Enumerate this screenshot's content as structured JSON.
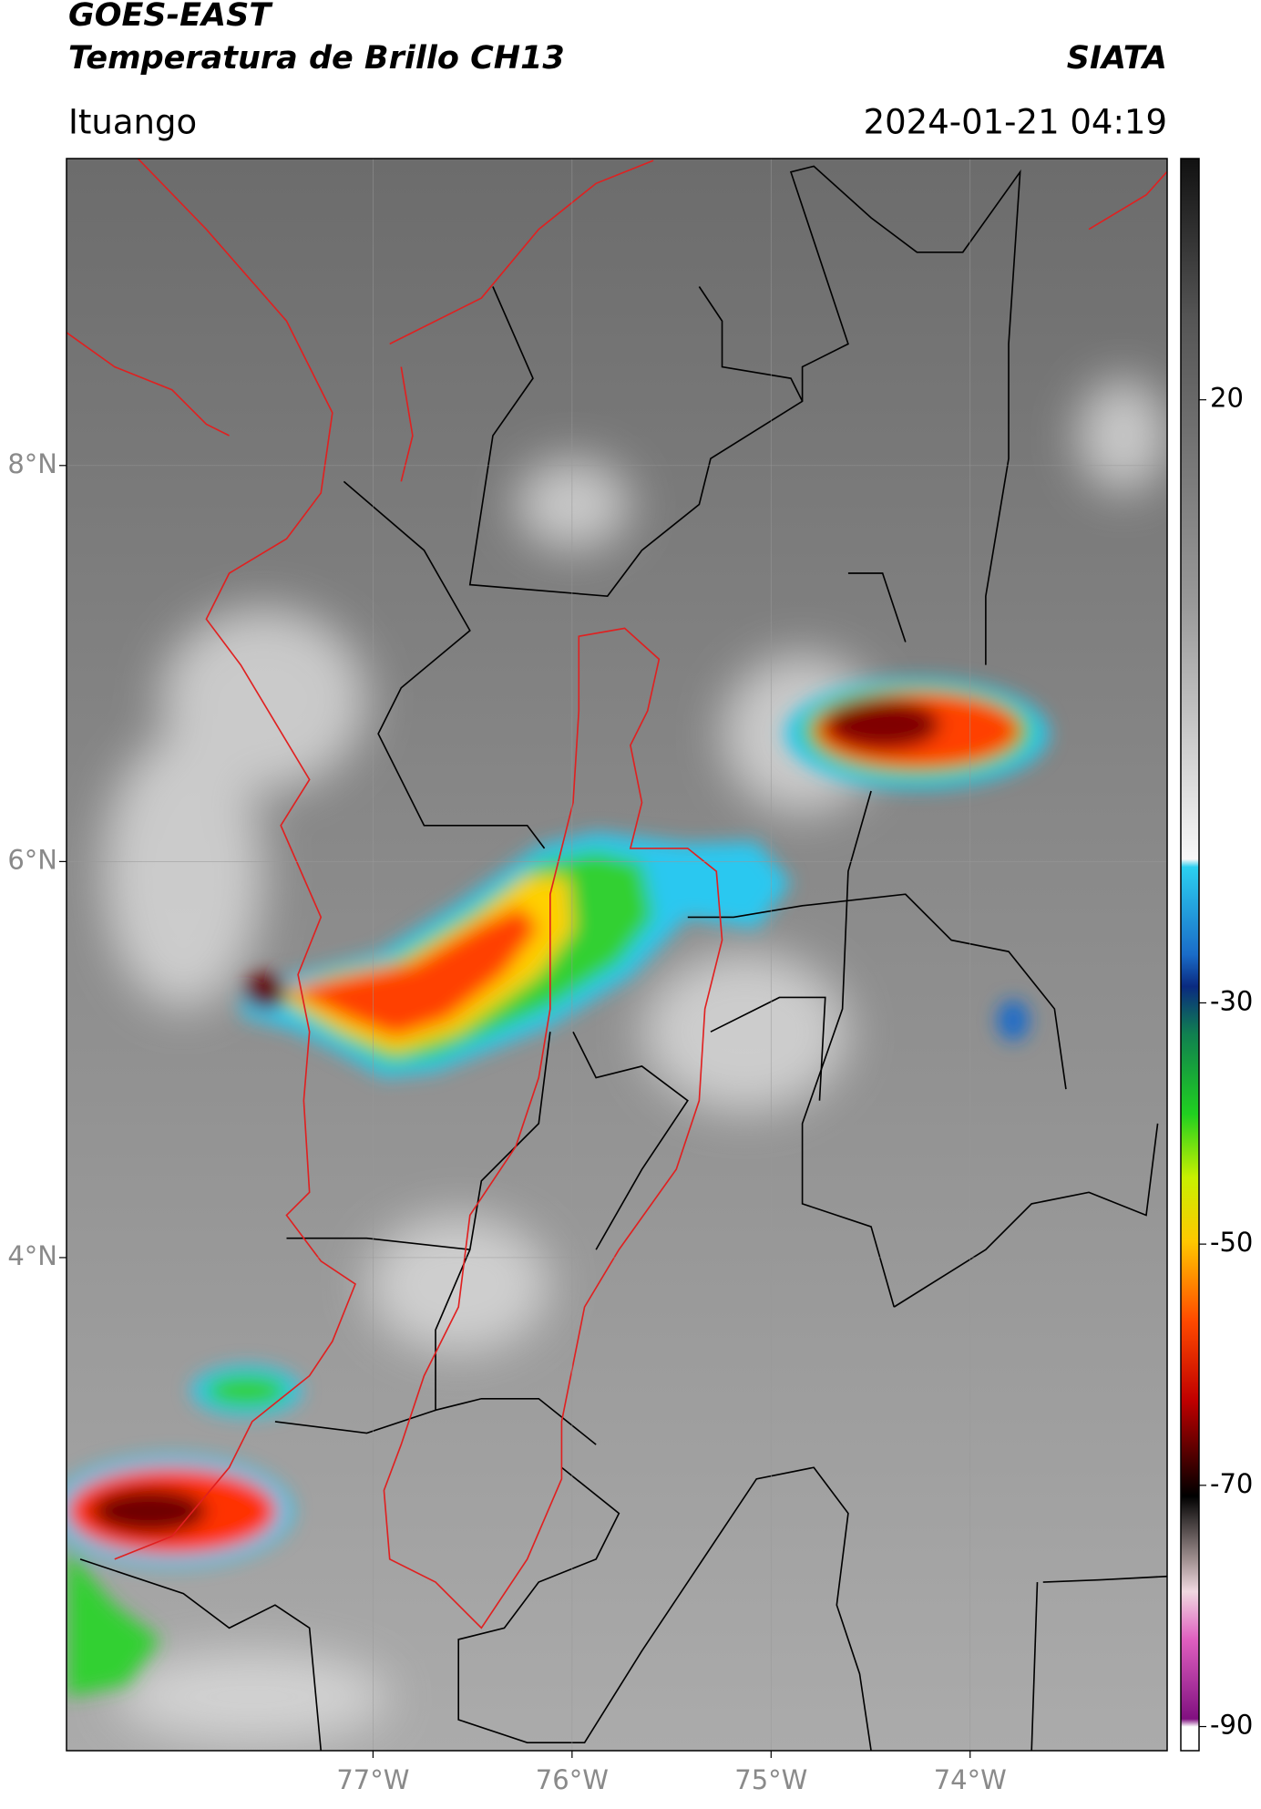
{
  "header": {
    "title": "GOES-EAST",
    "subtitle": "Temperatura de Brillo CH13",
    "source": "SIATA",
    "location": "Ituango",
    "datetime": "2024-01-21 04:19"
  },
  "map": {
    "xlim": [
      -78.54,
      -73.01
    ],
    "ylim": [
      1.51,
      9.55
    ],
    "xticks": [
      {
        "value": -77,
        "label": "77°W"
      },
      {
        "value": -76,
        "label": "76°W"
      },
      {
        "value": -75,
        "label": "75°W"
      },
      {
        "value": -74,
        "label": "74°W"
      }
    ],
    "yticks": [
      {
        "value": 8,
        "label": "8°N"
      },
      {
        "value": 6,
        "label": "6°N"
      },
      {
        "value": 4,
        "label": "4°N"
      }
    ],
    "grid": true
  },
  "colorbar": {
    "lim": [
      -92,
      40
    ],
    "ticks": [
      20,
      -30,
      -50,
      -70,
      -90
    ]
  }
}
